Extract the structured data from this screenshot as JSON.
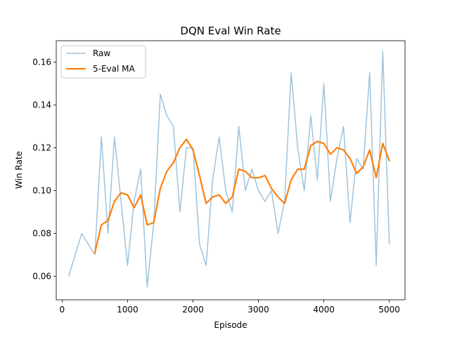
{
  "chart_data": {
    "type": "line",
    "title": "DQN Eval Win Rate",
    "xlabel": "Episode",
    "ylabel": "Win Rate",
    "xlim": [
      -90,
      5240
    ],
    "ylim": [
      0.049,
      0.17
    ],
    "xticks": [
      0,
      1000,
      2000,
      3000,
      4000,
      5000
    ],
    "xtick_labels": [
      "0",
      "1000",
      "2000",
      "3000",
      "4000",
      "5000"
    ],
    "yticks": [
      0.06,
      0.08,
      0.1,
      0.12,
      0.14,
      0.16
    ],
    "ytick_labels": [
      "0.06",
      "0.08",
      "0.10",
      "0.12",
      "0.14",
      "0.16"
    ],
    "grid": false,
    "legend": "top-left",
    "series": [
      {
        "name": "Raw",
        "color": "#9ec4dd",
        "x": [
          100,
          300,
          500,
          600,
          700,
          800,
          900,
          1000,
          1100,
          1200,
          1300,
          1400,
          1500,
          1600,
          1700,
          1800,
          1900,
          2000,
          2100,
          2200,
          2300,
          2400,
          2500,
          2600,
          2700,
          2800,
          2900,
          3000,
          3100,
          3200,
          3300,
          3400,
          3500,
          3600,
          3700,
          3800,
          3900,
          4000,
          4100,
          4200,
          4300,
          4400,
          4500,
          4600,
          4700,
          4800,
          4900,
          5000
        ],
        "y": [
          0.06,
          0.08,
          0.07,
          0.125,
          0.08,
          0.125,
          0.095,
          0.065,
          0.095,
          0.11,
          0.055,
          0.085,
          0.145,
          0.135,
          0.13,
          0.09,
          0.12,
          0.12,
          0.075,
          0.065,
          0.105,
          0.125,
          0.1,
          0.09,
          0.13,
          0.1,
          0.11,
          0.1,
          0.095,
          0.1,
          0.08,
          0.095,
          0.155,
          0.12,
          0.1,
          0.135,
          0.105,
          0.15,
          0.095,
          0.115,
          0.13,
          0.085,
          0.115,
          0.11,
          0.155,
          0.065,
          0.165,
          0.075
        ]
      },
      {
        "name": "5-Eval MA",
        "color": "#ff7f0e",
        "x": [
          500,
          600,
          700,
          800,
          900,
          1000,
          1100,
          1200,
          1300,
          1400,
          1500,
          1600,
          1700,
          1800,
          1900,
          2000,
          2100,
          2200,
          2300,
          2400,
          2500,
          2600,
          2700,
          2800,
          2900,
          3000,
          3100,
          3200,
          3300,
          3400,
          3500,
          3600,
          3700,
          3800,
          3900,
          4000,
          4100,
          4200,
          4300,
          4400,
          4500,
          4600,
          4700,
          4800,
          4900,
          5000
        ],
        "y": [
          0.071,
          0.084,
          0.086,
          0.095,
          0.099,
          0.098,
          0.092,
          0.098,
          0.084,
          0.085,
          0.101,
          0.109,
          0.113,
          0.12,
          0.124,
          0.119,
          0.107,
          0.094,
          0.097,
          0.098,
          0.094,
          0.097,
          0.11,
          0.109,
          0.106,
          0.106,
          0.107,
          0.101,
          0.097,
          0.094,
          0.105,
          0.11,
          0.11,
          0.121,
          0.123,
          0.122,
          0.117,
          0.12,
          0.119,
          0.115,
          0.108,
          0.111,
          0.119,
          0.106,
          0.122,
          0.114
        ]
      }
    ]
  }
}
